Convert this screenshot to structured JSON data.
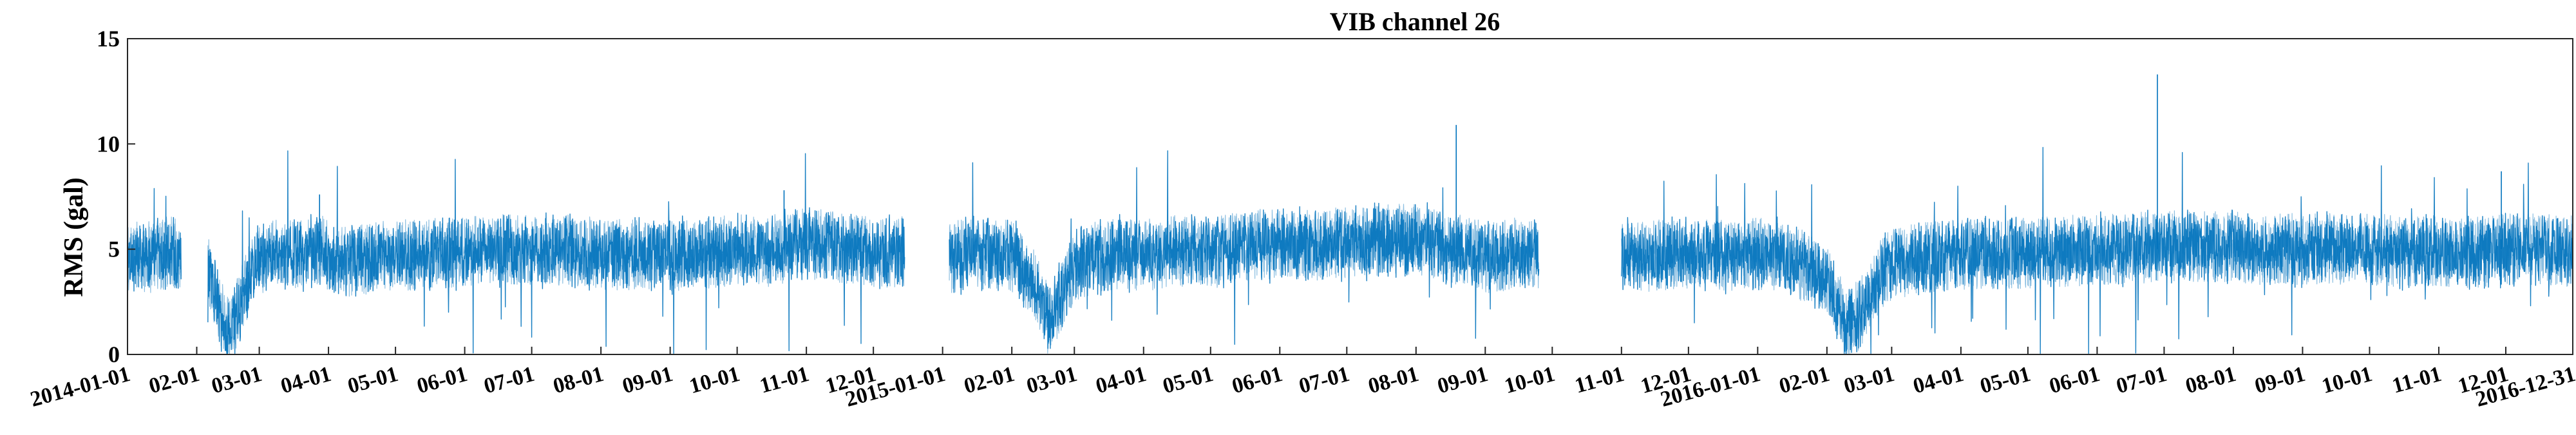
{
  "chart_data": {
    "type": "line",
    "title": "VIB channel 26",
    "xlabel": "",
    "ylabel": "RMS (gal)",
    "ylim": [
      0,
      15
    ],
    "yticks": [
      0,
      5,
      10,
      15
    ],
    "xlim": [
      "2014-01-01",
      "2016-12-31"
    ],
    "xticks": [
      {
        "date": "2014-01-01",
        "label": "2014-01-01"
      },
      {
        "date": "2014-02-01",
        "label": "02-01"
      },
      {
        "date": "2014-03-01",
        "label": "03-01"
      },
      {
        "date": "2014-04-01",
        "label": "04-01"
      },
      {
        "date": "2014-05-01",
        "label": "05-01"
      },
      {
        "date": "2014-06-01",
        "label": "06-01"
      },
      {
        "date": "2014-07-01",
        "label": "07-01"
      },
      {
        "date": "2014-08-01",
        "label": "08-01"
      },
      {
        "date": "2014-09-01",
        "label": "09-01"
      },
      {
        "date": "2014-10-01",
        "label": "10-01"
      },
      {
        "date": "2014-11-01",
        "label": "11-01"
      },
      {
        "date": "2014-12-01",
        "label": "12-01"
      },
      {
        "date": "2015-01-01",
        "label": "2015-01-01"
      },
      {
        "date": "2015-02-01",
        "label": "02-01"
      },
      {
        "date": "2015-03-01",
        "label": "03-01"
      },
      {
        "date": "2015-04-01",
        "label": "04-01"
      },
      {
        "date": "2015-05-01",
        "label": "05-01"
      },
      {
        "date": "2015-06-01",
        "label": "06-01"
      },
      {
        "date": "2015-07-01",
        "label": "07-01"
      },
      {
        "date": "2015-08-01",
        "label": "08-01"
      },
      {
        "date": "2015-09-01",
        "label": "09-01"
      },
      {
        "date": "2015-10-01",
        "label": "10-01"
      },
      {
        "date": "2015-11-01",
        "label": "11-01"
      },
      {
        "date": "2015-12-01",
        "label": "12-01"
      },
      {
        "date": "2016-01-01",
        "label": "2016-01-01"
      },
      {
        "date": "2016-02-01",
        "label": "02-01"
      },
      {
        "date": "2016-03-01",
        "label": "03-01"
      },
      {
        "date": "2016-04-01",
        "label": "04-01"
      },
      {
        "date": "2016-05-01",
        "label": "05-01"
      },
      {
        "date": "2016-06-01",
        "label": "06-01"
      },
      {
        "date": "2016-07-01",
        "label": "07-01"
      },
      {
        "date": "2016-08-01",
        "label": "08-01"
      },
      {
        "date": "2016-09-01",
        "label": "09-01"
      },
      {
        "date": "2016-10-01",
        "label": "10-01"
      },
      {
        "date": "2016-11-01",
        "label": "11-01"
      },
      {
        "date": "2016-12-01",
        "label": "12-01"
      },
      {
        "date": "2016-12-31",
        "label": "2016-12-31"
      }
    ],
    "grid": false,
    "legend": "none",
    "line_color": "#0072BD",
    "series": [
      {
        "x": [
          "2014-01-01",
          "2014-01-05",
          "2014-01-10",
          "2014-01-15",
          "2014-01-20",
          "2014-01-25",
          "2014-01-31",
          "2014-02-06",
          "2014-02-10",
          "2014-02-15",
          "2014-02-20",
          "2014-02-25",
          "2014-03-01",
          "2014-03-10",
          "2014-03-20",
          "2014-03-30",
          "2014-04-04",
          "2014-04-15",
          "2014-05-01",
          "2014-05-15",
          "2014-06-01",
          "2014-06-15",
          "2014-07-01",
          "2014-07-15",
          "2014-08-01",
          "2014-08-15",
          "2014-09-01",
          "2014-09-15",
          "2014-10-01",
          "2014-10-15",
          "2014-11-01",
          "2014-11-15",
          "2014-12-01",
          "2014-12-15",
          "2014-12-31",
          "2015-01-04",
          "2015-01-15",
          "2015-02-01",
          "2015-02-10",
          "2015-02-18",
          "2015-02-23",
          "2015-03-01",
          "2015-03-10",
          "2015-03-20",
          "2015-04-01",
          "2015-04-15",
          "2015-05-01",
          "2015-05-15",
          "2015-06-01",
          "2015-06-15",
          "2015-07-01",
          "2015-07-15",
          "2015-08-01",
          "2015-08-15",
          "2015-09-01",
          "2015-09-15",
          "2015-09-25",
          "2015-10-01",
          "2015-11-01",
          "2015-11-15",
          "2015-12-01",
          "2015-12-15",
          "2016-01-01",
          "2016-01-15",
          "2016-02-01",
          "2016-02-10",
          "2016-02-18",
          "2016-02-25",
          "2016-03-01",
          "2016-03-15",
          "2016-04-01",
          "2016-04-15",
          "2016-05-01",
          "2016-05-15",
          "2016-06-01",
          "2016-06-15",
          "2016-07-01",
          "2016-07-15",
          "2016-08-01",
          "2016-08-15",
          "2016-09-01",
          "2016-09-15",
          "2016-10-01",
          "2016-10-15",
          "2016-11-01",
          "2016-11-15",
          "2016-12-01",
          "2016-12-15",
          "2016-12-31"
        ],
        "y": [
          4.5,
          4.8,
          4.6,
          4.7,
          4.9,
          4.6,
          null,
          4.0,
          2.5,
          1.0,
          2.2,
          3.8,
          4.6,
          4.7,
          4.8,
          4.9,
          4.4,
          4.5,
          4.7,
          4.8,
          4.9,
          5.0,
          4.9,
          5.0,
          4.8,
          4.7,
          4.7,
          4.8,
          5.0,
          4.9,
          5.3,
          5.1,
          4.8,
          4.9,
          null,
          4.6,
          4.8,
          4.7,
          3.5,
          1.5,
          2.8,
          4.2,
          4.6,
          4.8,
          4.7,
          4.9,
          4.8,
          5.1,
          5.3,
          5.2,
          5.3,
          5.4,
          5.5,
          5.1,
          4.6,
          4.8,
          4.6,
          null,
          4.6,
          4.7,
          4.8,
          4.7,
          4.8,
          4.6,
          3.5,
          1.3,
          2.2,
          3.8,
          4.3,
          4.6,
          4.7,
          4.8,
          4.8,
          4.9,
          5.0,
          5.0,
          5.2,
          5.1,
          5.1,
          5.0,
          5.0,
          5.0,
          5.0,
          4.9,
          4.9,
          4.8,
          5.0,
          5.0,
          4.9
        ]
      }
    ]
  }
}
